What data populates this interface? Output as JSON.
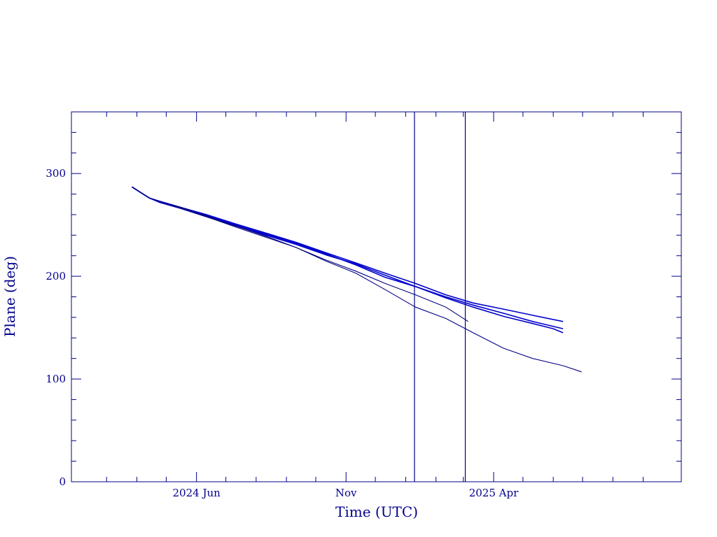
{
  "colors": {
    "axis": "#00008B",
    "series_primary": "#0000CC",
    "series_secondary": "#000080",
    "background": "#FFFFFF"
  },
  "chart_data": {
    "type": "line",
    "title": "",
    "xlabel": "Time (UTC)",
    "ylabel": "Plane (deg)",
    "x_axis": {
      "type": "date",
      "range": [
        "2024-01-25",
        "2025-10-10"
      ],
      "major_ticks": [
        {
          "date": "2024-06-01",
          "label": "2024 Jun"
        },
        {
          "date": "2024-11-01",
          "label": "Nov"
        },
        {
          "date": "2025-04-01",
          "label": "2025 Apr"
        }
      ],
      "minor_ticks": [
        "2024-03-01",
        "2024-04-01",
        "2024-05-01",
        "2024-07-01",
        "2024-08-01",
        "2024-09-01",
        "2024-10-01",
        "2024-12-01",
        "2025-01-01",
        "2025-02-01",
        "2025-03-01",
        "2025-05-01",
        "2025-06-01",
        "2025-07-01",
        "2025-08-01",
        "2025-09-01"
      ]
    },
    "y_axis": {
      "range": [
        0,
        360
      ],
      "major_ticks": [
        0,
        100,
        200,
        300
      ],
      "minor_step": 20
    },
    "vertical_lines": [
      "2025-01-10",
      "2025-03-03"
    ],
    "grid": false,
    "legend": "none",
    "series": [
      {
        "points": [
          [
            "2024-03-27",
            287
          ],
          [
            "2024-04-04",
            282
          ],
          [
            "2024-04-14",
            276
          ],
          [
            "2024-04-24",
            273
          ],
          [
            "2024-05-16",
            267
          ],
          [
            "2024-06-11",
            260
          ],
          [
            "2024-07-11",
            251
          ],
          [
            "2024-08-11",
            242
          ],
          [
            "2024-09-11",
            233
          ],
          [
            "2024-10-11",
            223
          ],
          [
            "2024-11-11",
            213
          ],
          [
            "2024-12-11",
            203
          ],
          [
            "2025-01-11",
            193
          ],
          [
            "2025-02-11",
            182
          ],
          [
            "2025-03-11",
            174
          ],
          [
            "2025-04-11",
            168
          ],
          [
            "2025-05-11",
            162
          ],
          [
            "2025-06-11",
            156
          ]
        ]
      },
      {
        "points": [
          [
            "2024-03-27",
            287
          ],
          [
            "2024-04-04",
            282
          ],
          [
            "2024-04-14",
            276
          ],
          [
            "2024-04-24",
            272
          ],
          [
            "2024-05-16",
            266
          ],
          [
            "2024-06-11",
            258
          ],
          [
            "2024-07-11",
            249
          ],
          [
            "2024-08-11",
            240
          ],
          [
            "2024-09-11",
            231
          ],
          [
            "2024-10-11",
            221
          ],
          [
            "2024-11-11",
            212
          ],
          [
            "2024-12-11",
            201
          ],
          [
            "2025-01-11",
            190
          ],
          [
            "2025-02-11",
            179
          ],
          [
            "2025-03-11",
            170
          ],
          [
            "2025-04-11",
            161
          ],
          [
            "2025-05-11",
            154
          ],
          [
            "2025-06-01",
            149
          ],
          [
            "2025-06-11",
            145
          ]
        ]
      },
      {
        "points": [
          [
            "2024-03-27",
            287
          ],
          [
            "2024-04-04",
            282
          ],
          [
            "2024-04-14",
            276
          ],
          [
            "2024-04-24",
            273
          ],
          [
            "2024-05-16",
            267
          ],
          [
            "2024-06-11",
            259
          ],
          [
            "2024-07-11",
            250
          ],
          [
            "2024-08-11",
            241
          ],
          [
            "2024-09-11",
            232
          ],
          [
            "2024-10-11",
            222
          ],
          [
            "2024-11-11",
            211
          ],
          [
            "2024-12-11",
            199
          ],
          [
            "2025-01-11",
            190
          ],
          [
            "2025-02-11",
            180
          ],
          [
            "2025-03-11",
            172
          ],
          [
            "2025-04-11",
            164
          ],
          [
            "2025-05-11",
            156
          ],
          [
            "2025-06-11",
            149
          ]
        ]
      },
      {
        "points": [
          [
            "2024-03-27",
            287
          ],
          [
            "2024-04-04",
            282
          ],
          [
            "2024-04-14",
            276
          ],
          [
            "2024-04-24",
            273
          ],
          [
            "2024-05-16",
            267
          ],
          [
            "2024-06-11",
            259
          ],
          [
            "2024-07-11",
            249
          ],
          [
            "2024-08-11",
            239
          ],
          [
            "2024-09-11",
            228
          ],
          [
            "2024-10-11",
            216
          ],
          [
            "2024-11-11",
            205
          ],
          [
            "2024-12-11",
            193
          ],
          [
            "2025-01-11",
            182
          ],
          [
            "2025-02-11",
            170
          ],
          [
            "2025-03-06",
            156
          ]
        ]
      },
      {
        "points": [
          [
            "2024-03-27",
            287
          ],
          [
            "2024-04-04",
            282
          ],
          [
            "2024-04-14",
            276
          ],
          [
            "2024-04-24",
            273
          ],
          [
            "2024-05-16",
            266
          ],
          [
            "2024-06-11",
            258
          ],
          [
            "2024-07-11",
            248
          ],
          [
            "2024-08-11",
            238
          ],
          [
            "2024-09-11",
            228
          ],
          [
            "2024-10-11",
            215
          ],
          [
            "2024-11-11",
            203
          ],
          [
            "2024-12-11",
            187
          ],
          [
            "2025-01-11",
            170
          ],
          [
            "2025-02-11",
            159
          ],
          [
            "2025-03-11",
            145
          ],
          [
            "2025-04-11",
            130
          ],
          [
            "2025-05-11",
            120
          ],
          [
            "2025-06-11",
            113
          ],
          [
            "2025-06-30",
            107
          ]
        ]
      }
    ]
  }
}
